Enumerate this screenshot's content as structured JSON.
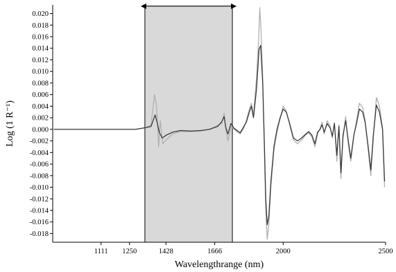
{
  "chart_data": {
    "type": "line",
    "title": "",
    "xlabel": "Wavelengthrange (nm)",
    "ylabel": "Log (1 R⁻¹)",
    "xlim": [
      875,
      2500
    ],
    "ylim": [
      -0.0195,
      0.0215
    ],
    "x_ticks": [
      1111,
      1250,
      1428,
      1666,
      2000,
      2500
    ],
    "y_ticks": [
      0.02,
      0.018,
      0.016,
      0.014,
      0.012,
      0.01,
      0.008,
      0.006,
      0.004,
      0.002,
      0.0,
      -0.002,
      -0.004,
      -0.006,
      -0.008,
      -0.01,
      -0.012,
      -0.014,
      -0.016,
      -0.018
    ],
    "x_tick_labels": [
      "1111",
      "1250",
      "1428",
      "1666",
      "2000",
      "2500"
    ],
    "y_tick_labels": [
      "0.020",
      "0.018",
      "0.016",
      "0.014",
      "0.012",
      "0.010",
      "0.008",
      "0.006",
      "0.004",
      "0.002",
      "0.000",
      "-0.002",
      "-0.004",
      "-0.006",
      "-0.008",
      "-0.010",
      "-0.012",
      "-0.014",
      "-0.016",
      "-0.018"
    ],
    "highlight_range": [
      1325,
      1752
    ],
    "highlight_color": "#d9d9d9",
    "series": [
      {
        "color": "#3a3a3a",
        "points": [
          [
            880,
            0.0
          ],
          [
            930,
            0.0
          ],
          [
            980,
            0.0
          ],
          [
            1030,
            0.0
          ],
          [
            1080,
            0.0
          ],
          [
            1130,
            0.0
          ],
          [
            1180,
            0.0
          ],
          [
            1230,
            0.0
          ],
          [
            1280,
            0.0
          ],
          [
            1330,
            0.0003
          ],
          [
            1355,
            0.0005
          ],
          [
            1375,
            0.0025
          ],
          [
            1385,
            0.0012
          ],
          [
            1395,
            -0.0005
          ],
          [
            1410,
            -0.0015
          ],
          [
            1430,
            -0.001
          ],
          [
            1460,
            -0.0005
          ],
          [
            1500,
            -0.0002
          ],
          [
            1550,
            -0.0003
          ],
          [
            1600,
            -0.0002
          ],
          [
            1640,
            0.0
          ],
          [
            1680,
            0.0005
          ],
          [
            1700,
            0.0013
          ],
          [
            1712,
            0.0022
          ],
          [
            1720,
            0.0003
          ],
          [
            1730,
            -0.0008
          ],
          [
            1745,
            0.001
          ],
          [
            1760,
            0.0002
          ],
          [
            1790,
            -0.0006
          ],
          [
            1808,
            0.0005
          ],
          [
            1820,
            0.0012
          ],
          [
            1835,
            0.003
          ],
          [
            1845,
            0.004
          ],
          [
            1855,
            0.002
          ],
          [
            1870,
            0.007
          ],
          [
            1882,
            0.0138
          ],
          [
            1890,
            0.0145
          ],
          [
            1900,
            0.008
          ],
          [
            1908,
            -0.002
          ],
          [
            1915,
            -0.012
          ],
          [
            1922,
            -0.0165
          ],
          [
            1930,
            -0.015
          ],
          [
            1940,
            -0.009
          ],
          [
            1955,
            -0.003
          ],
          [
            1970,
            0.0
          ],
          [
            1985,
            0.002
          ],
          [
            2000,
            0.0035
          ],
          [
            2015,
            0.003
          ],
          [
            2030,
            0.0012
          ],
          [
            2050,
            -0.0015
          ],
          [
            2070,
            -0.002
          ],
          [
            2090,
            -0.0015
          ],
          [
            2110,
            -0.0008
          ],
          [
            2125,
            -0.0004
          ],
          [
            2140,
            -0.001
          ],
          [
            2155,
            -0.0025
          ],
          [
            2168,
            -0.0005
          ],
          [
            2180,
            0.0
          ],
          [
            2190,
            0.0008
          ],
          [
            2200,
            -0.0005
          ],
          [
            2215,
            0.001
          ],
          [
            2230,
            0.0002
          ],
          [
            2240,
            -0.0012
          ],
          [
            2250,
            0.001
          ],
          [
            2262,
            -0.0045
          ],
          [
            2272,
            0.0005
          ],
          [
            2282,
            -0.0075
          ],
          [
            2292,
            -0.001
          ],
          [
            2305,
            0.0015
          ],
          [
            2318,
            -0.002
          ],
          [
            2330,
            -0.005
          ],
          [
            2345,
            -0.001
          ],
          [
            2358,
            0.001
          ],
          [
            2372,
            0.0035
          ],
          [
            2388,
            0.003
          ],
          [
            2400,
            0.0012
          ],
          [
            2415,
            -0.003
          ],
          [
            2428,
            -0.007
          ],
          [
            2440,
            -0.001
          ],
          [
            2455,
            0.0042
          ],
          [
            2470,
            0.003
          ],
          [
            2485,
            0.0
          ],
          [
            2495,
            -0.009
          ]
        ]
      },
      {
        "color": "#b0b0b0",
        "points": [
          [
            880,
            0.0
          ],
          [
            930,
            0.0
          ],
          [
            980,
            0.0
          ],
          [
            1030,
            0.0
          ],
          [
            1080,
            0.0
          ],
          [
            1130,
            0.0
          ],
          [
            1180,
            0.0
          ],
          [
            1230,
            0.0
          ],
          [
            1280,
            0.0
          ],
          [
            1330,
            0.0003
          ],
          [
            1355,
            0.0008
          ],
          [
            1372,
            0.006
          ],
          [
            1382,
            0.004
          ],
          [
            1392,
            -0.003
          ],
          [
            1400,
            0.0015
          ],
          [
            1412,
            -0.0025
          ],
          [
            1430,
            -0.0018
          ],
          [
            1460,
            -0.0008
          ],
          [
            1500,
            -0.0004
          ],
          [
            1550,
            -0.0004
          ],
          [
            1600,
            -0.0003
          ],
          [
            1640,
            0.0
          ],
          [
            1680,
            0.0007
          ],
          [
            1700,
            0.001
          ],
          [
            1712,
            0.0028
          ],
          [
            1720,
            0.0
          ],
          [
            1730,
            -0.002
          ],
          [
            1745,
            0.0005
          ],
          [
            1760,
            0.0
          ],
          [
            1790,
            -0.0008
          ],
          [
            1808,
            0.0002
          ],
          [
            1820,
            0.0015
          ],
          [
            1835,
            0.0035
          ],
          [
            1845,
            0.0045
          ],
          [
            1855,
            0.0025
          ],
          [
            1870,
            0.009
          ],
          [
            1880,
            0.0155
          ],
          [
            1886,
            0.021
          ],
          [
            1892,
            0.017
          ],
          [
            1900,
            0.009
          ],
          [
            1908,
            -0.003
          ],
          [
            1915,
            -0.014
          ],
          [
            1922,
            -0.019
          ],
          [
            1930,
            -0.0165
          ],
          [
            1940,
            -0.01
          ],
          [
            1955,
            -0.0035
          ],
          [
            1970,
            -0.0005
          ],
          [
            1985,
            0.0018
          ],
          [
            2000,
            0.004
          ],
          [
            2015,
            0.0032
          ],
          [
            2030,
            0.001
          ],
          [
            2050,
            -0.0018
          ],
          [
            2070,
            -0.0025
          ],
          [
            2090,
            -0.0018
          ],
          [
            2110,
            -0.001
          ],
          [
            2125,
            -0.0006
          ],
          [
            2140,
            -0.0013
          ],
          [
            2155,
            -0.003
          ],
          [
            2168,
            -0.0008
          ],
          [
            2180,
            0.0002
          ],
          [
            2190,
            0.0012
          ],
          [
            2200,
            -0.0008
          ],
          [
            2215,
            0.0015
          ],
          [
            2230,
            0.0005
          ],
          [
            2240,
            -0.0015
          ],
          [
            2250,
            0.0012
          ],
          [
            2262,
            -0.0055
          ],
          [
            2272,
            0.0008
          ],
          [
            2282,
            -0.0085
          ],
          [
            2292,
            -0.0015
          ],
          [
            2305,
            0.0022
          ],
          [
            2318,
            -0.0025
          ],
          [
            2330,
            -0.0055
          ],
          [
            2345,
            -0.0012
          ],
          [
            2358,
            0.0015
          ],
          [
            2372,
            0.0045
          ],
          [
            2388,
            0.0038
          ],
          [
            2400,
            0.0015
          ],
          [
            2415,
            -0.0035
          ],
          [
            2428,
            -0.008
          ],
          [
            2440,
            -0.0015
          ],
          [
            2455,
            0.0055
          ],
          [
            2470,
            0.004
          ],
          [
            2485,
            0.0002
          ],
          [
            2495,
            -0.01
          ]
        ]
      }
    ],
    "grid": false,
    "legend": "none"
  }
}
